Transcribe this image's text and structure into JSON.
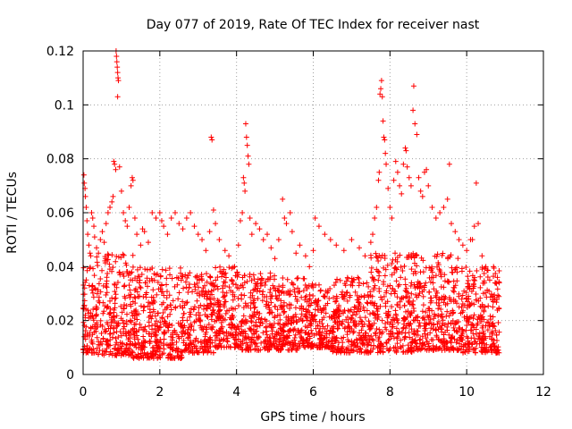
{
  "chart_data": {
    "type": "scatter",
    "title": "Day 077 of 2019, Rate Of TEC Index for receiver nast",
    "xlabel": "GPS time / hours",
    "ylabel": "ROTI / TECUs",
    "xlim": [
      0,
      12
    ],
    "ylim": [
      0,
      0.12
    ],
    "xticks": [
      0,
      2,
      4,
      6,
      8,
      10,
      12
    ],
    "yticks": [
      0,
      0.02,
      0.04,
      0.06,
      0.08,
      0.1,
      0.12
    ],
    "xtick_labels": [
      "0",
      "2",
      "4",
      "6",
      "8",
      "10",
      "12"
    ],
    "ytick_labels": [
      "0",
      "0.02",
      "0.04",
      "0.06",
      "0.08",
      "0.1",
      "0.12"
    ],
    "grid": true,
    "marker": "+",
    "color": "#ff0000",
    "data_range_hours": [
      0,
      10.85
    ],
    "series": [
      {
        "name": "ROTI",
        "points": [
          [
            0.02,
            0.074
          ],
          [
            0.03,
            0.071
          ],
          [
            0.05,
            0.069
          ],
          [
            0.06,
            0.066
          ],
          [
            0.08,
            0.062
          ],
          [
            0.1,
            0.057
          ],
          [
            0.12,
            0.052
          ],
          [
            0.15,
            0.048
          ],
          [
            0.18,
            0.045
          ],
          [
            0.2,
            0.044
          ],
          [
            0.22,
            0.06
          ],
          [
            0.25,
            0.058
          ],
          [
            0.28,
            0.055
          ],
          [
            0.3,
            0.051
          ],
          [
            0.35,
            0.047
          ],
          [
            0.4,
            0.045
          ],
          [
            0.45,
            0.05
          ],
          [
            0.5,
            0.053
          ],
          [
            0.55,
            0.049
          ],
          [
            0.6,
            0.056
          ],
          [
            0.65,
            0.06
          ],
          [
            0.7,
            0.062
          ],
          [
            0.75,
            0.064
          ],
          [
            0.78,
            0.066
          ],
          [
            0.8,
            0.079
          ],
          [
            0.82,
            0.078
          ],
          [
            0.85,
            0.076
          ],
          [
            0.86,
            0.12
          ],
          [
            0.87,
            0.118
          ],
          [
            0.88,
            0.116
          ],
          [
            0.89,
            0.114
          ],
          [
            0.9,
            0.112
          ],
          [
            0.91,
            0.11
          ],
          [
            0.92,
            0.109
          ],
          [
            0.9,
            0.103
          ],
          [
            0.95,
            0.077
          ],
          [
            1.0,
            0.068
          ],
          [
            1.05,
            0.06
          ],
          [
            1.1,
            0.057
          ],
          [
            1.15,
            0.055
          ],
          [
            1.2,
            0.062
          ],
          [
            1.25,
            0.07
          ],
          [
            1.28,
            0.073
          ],
          [
            1.3,
            0.072
          ],
          [
            1.35,
            0.058
          ],
          [
            1.4,
            0.052
          ],
          [
            1.5,
            0.048
          ],
          [
            1.55,
            0.054
          ],
          [
            1.6,
            0.053
          ],
          [
            1.7,
            0.049
          ],
          [
            1.8,
            0.06
          ],
          [
            1.9,
            0.058
          ],
          [
            2.0,
            0.06
          ],
          [
            2.05,
            0.057
          ],
          [
            2.1,
            0.055
          ],
          [
            2.2,
            0.052
          ],
          [
            2.3,
            0.058
          ],
          [
            2.4,
            0.06
          ],
          [
            2.5,
            0.056
          ],
          [
            2.6,
            0.054
          ],
          [
            2.7,
            0.058
          ],
          [
            2.8,
            0.06
          ],
          [
            2.9,
            0.055
          ],
          [
            3.0,
            0.052
          ],
          [
            3.1,
            0.05
          ],
          [
            3.2,
            0.046
          ],
          [
            3.3,
            0.053
          ],
          [
            3.34,
            0.088
          ],
          [
            3.36,
            0.087
          ],
          [
            3.4,
            0.061
          ],
          [
            3.45,
            0.056
          ],
          [
            3.55,
            0.05
          ],
          [
            3.7,
            0.046
          ],
          [
            3.8,
            0.044
          ],
          [
            3.95,
            0.04
          ],
          [
            4.05,
            0.048
          ],
          [
            4.1,
            0.057
          ],
          [
            4.15,
            0.06
          ],
          [
            4.18,
            0.073
          ],
          [
            4.2,
            0.071
          ],
          [
            4.22,
            0.068
          ],
          [
            4.24,
            0.093
          ],
          [
            4.26,
            0.088
          ],
          [
            4.28,
            0.085
          ],
          [
            4.3,
            0.081
          ],
          [
            4.32,
            0.078
          ],
          [
            4.35,
            0.058
          ],
          [
            4.4,
            0.052
          ],
          [
            4.5,
            0.056
          ],
          [
            4.6,
            0.054
          ],
          [
            4.7,
            0.05
          ],
          [
            4.8,
            0.052
          ],
          [
            4.9,
            0.047
          ],
          [
            5.0,
            0.043
          ],
          [
            5.1,
            0.05
          ],
          [
            5.2,
            0.065
          ],
          [
            5.25,
            0.058
          ],
          [
            5.3,
            0.056
          ],
          [
            5.4,
            0.06
          ],
          [
            5.45,
            0.053
          ],
          [
            5.55,
            0.045
          ],
          [
            5.65,
            0.048
          ],
          [
            5.8,
            0.044
          ],
          [
            5.9,
            0.04
          ],
          [
            6.0,
            0.046
          ],
          [
            6.05,
            0.058
          ],
          [
            6.15,
            0.055
          ],
          [
            6.3,
            0.052
          ],
          [
            6.45,
            0.05
          ],
          [
            6.6,
            0.048
          ],
          [
            6.8,
            0.046
          ],
          [
            7.0,
            0.05
          ],
          [
            7.2,
            0.047
          ],
          [
            7.35,
            0.044
          ],
          [
            7.5,
            0.049
          ],
          [
            7.55,
            0.052
          ],
          [
            7.6,
            0.058
          ],
          [
            7.65,
            0.062
          ],
          [
            7.7,
            0.072
          ],
          [
            7.72,
            0.075
          ],
          [
            7.74,
            0.104
          ],
          [
            7.76,
            0.106
          ],
          [
            7.78,
            0.109
          ],
          [
            7.8,
            0.103
          ],
          [
            7.82,
            0.094
          ],
          [
            7.84,
            0.088
          ],
          [
            7.86,
            0.087
          ],
          [
            7.88,
            0.082
          ],
          [
            7.9,
            0.078
          ],
          [
            7.95,
            0.069
          ],
          [
            8.0,
            0.062
          ],
          [
            8.05,
            0.058
          ],
          [
            8.1,
            0.072
          ],
          [
            8.15,
            0.079
          ],
          [
            8.2,
            0.075
          ],
          [
            8.25,
            0.07
          ],
          [
            8.3,
            0.067
          ],
          [
            8.35,
            0.078
          ],
          [
            8.4,
            0.084
          ],
          [
            8.42,
            0.083
          ],
          [
            8.45,
            0.077
          ],
          [
            8.5,
            0.073
          ],
          [
            8.55,
            0.07
          ],
          [
            8.6,
            0.098
          ],
          [
            8.62,
            0.107
          ],
          [
            8.65,
            0.093
          ],
          [
            8.7,
            0.089
          ],
          [
            8.75,
            0.073
          ],
          [
            8.8,
            0.068
          ],
          [
            8.85,
            0.066
          ],
          [
            8.9,
            0.075
          ],
          [
            8.95,
            0.076
          ],
          [
            9.0,
            0.07
          ],
          [
            9.1,
            0.062
          ],
          [
            9.2,
            0.058
          ],
          [
            9.3,
            0.06
          ],
          [
            9.4,
            0.062
          ],
          [
            9.5,
            0.065
          ],
          [
            9.55,
            0.078
          ],
          [
            9.6,
            0.056
          ],
          [
            9.7,
            0.053
          ],
          [
            9.8,
            0.05
          ],
          [
            9.9,
            0.048
          ],
          [
            10.0,
            0.046
          ],
          [
            10.1,
            0.05
          ],
          [
            10.15,
            0.05
          ],
          [
            10.2,
            0.055
          ],
          [
            10.25,
            0.071
          ],
          [
            10.3,
            0.056
          ],
          [
            10.4,
            0.044
          ],
          [
            10.5,
            0.04
          ],
          [
            10.6,
            0.035
          ],
          [
            10.7,
            0.04
          ],
          [
            10.8,
            0.036
          ],
          [
            10.85,
            0.034
          ]
        ]
      }
    ],
    "dense_band": {
      "description": "Dense cloud of ROTI values mainly between 0.005 and 0.04 TECUs over 0-10.85 h",
      "segments": [
        {
          "x": [
            0.0,
            0.35
          ],
          "y": [
            0.008,
            0.04
          ]
        },
        {
          "x": [
            0.35,
            1.3
          ],
          "y": [
            0.007,
            0.045
          ]
        },
        {
          "x": [
            1.3,
            2.6
          ],
          "y": [
            0.006,
            0.04
          ]
        },
        {
          "x": [
            2.6,
            3.4
          ],
          "y": [
            0.008,
            0.038
          ]
        },
        {
          "x": [
            3.4,
            4.1
          ],
          "y": [
            0.01,
            0.04
          ]
        },
        {
          "x": [
            4.1,
            5.0
          ],
          "y": [
            0.009,
            0.038
          ]
        },
        {
          "x": [
            5.0,
            5.8
          ],
          "y": [
            0.009,
            0.036
          ]
        },
        {
          "x": [
            5.8,
            6.4
          ],
          "y": [
            0.01,
            0.034
          ]
        },
        {
          "x": [
            6.4,
            7.5
          ],
          "y": [
            0.008,
            0.036
          ]
        },
        {
          "x": [
            7.5,
            8.7
          ],
          "y": [
            0.008,
            0.045
          ]
        },
        {
          "x": [
            8.7,
            9.8
          ],
          "y": [
            0.009,
            0.045
          ]
        },
        {
          "x": [
            9.8,
            10.85
          ],
          "y": [
            0.008,
            0.04
          ]
        }
      ]
    }
  }
}
